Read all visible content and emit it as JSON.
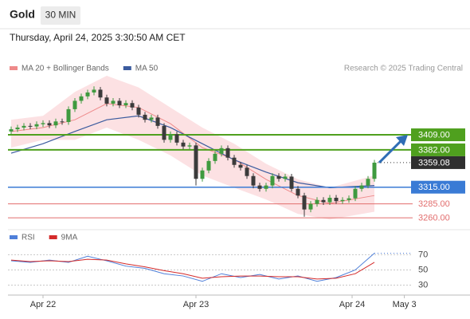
{
  "chart_data": [
    {
      "type": "candlestick",
      "title": "Gold",
      "timeframe": "30 MIN",
      "subtitle": "Thursday, April 24, 2025 3:30:50 AM CET",
      "source": "Research © 2025 Trading Central",
      "up_color": "#3f9a3f",
      "down_color": "#3b3b3b",
      "candles": {
        "open": [
          3415,
          3419,
          3422,
          3425,
          3424,
          3428,
          3430,
          3426,
          3433,
          3432,
          3455,
          3470,
          3478,
          3485,
          3490,
          3476,
          3465,
          3470,
          3462,
          3466,
          3458,
          3445,
          3436,
          3440,
          3425,
          3400,
          3410,
          3395,
          3388,
          3390,
          3330,
          3345,
          3362,
          3375,
          3385,
          3368,
          3355,
          3350,
          3335,
          3318,
          3312,
          3318,
          3335,
          3330,
          3334,
          3312,
          3300,
          3275,
          3285,
          3292,
          3288,
          3296,
          3290,
          3292,
          3295,
          3312,
          3318,
          3330
        ],
        "high": [
          3424,
          3427,
          3430,
          3430,
          3433,
          3435,
          3435,
          3438,
          3438,
          3460,
          3475,
          3483,
          3490,
          3496,
          3495,
          3481,
          3475,
          3475,
          3471,
          3471,
          3463,
          3450,
          3445,
          3445,
          3430,
          3415,
          3415,
          3400,
          3395,
          3395,
          3350,
          3367,
          3380,
          3390,
          3390,
          3373,
          3360,
          3355,
          3340,
          3323,
          3323,
          3340,
          3340,
          3339,
          3339,
          3317,
          3305,
          3290,
          3297,
          3297,
          3301,
          3301,
          3297,
          3300,
          3317,
          3323,
          3335,
          3364
        ],
        "low": [
          3410,
          3414,
          3417,
          3419,
          3419,
          3423,
          3421,
          3421,
          3427,
          3427,
          3450,
          3465,
          3473,
          3480,
          3471,
          3460,
          3460,
          3457,
          3457,
          3453,
          3440,
          3431,
          3431,
          3420,
          3395,
          3395,
          3390,
          3383,
          3383,
          3318,
          3325,
          3340,
          3357,
          3370,
          3363,
          3350,
          3345,
          3330,
          3313,
          3307,
          3307,
          3313,
          3325,
          3325,
          3307,
          3295,
          3262,
          3270,
          3280,
          3283,
          3283,
          3285,
          3285,
          3287,
          3290,
          3307,
          3313,
          3325
        ],
        "close": [
          3419,
          3422,
          3425,
          3424,
          3428,
          3430,
          3426,
          3433,
          3432,
          3455,
          3470,
          3478,
          3485,
          3490,
          3476,
          3465,
          3470,
          3462,
          3466,
          3458,
          3445,
          3436,
          3440,
          3425,
          3400,
          3410,
          3395,
          3388,
          3390,
          3330,
          3345,
          3362,
          3375,
          3385,
          3368,
          3355,
          3350,
          3335,
          3318,
          3312,
          3318,
          3335,
          3330,
          3334,
          3312,
          3300,
          3275,
          3285,
          3292,
          3288,
          3296,
          3290,
          3292,
          3295,
          3312,
          3318,
          3330,
          3359
        ]
      },
      "series": [
        {
          "name": "MA 20 + Bollinger Bands",
          "color": "#ee8a8a",
          "band_color": "#fbd9dc",
          "x": [
            0,
            5,
            10,
            15,
            20,
            25,
            30,
            35,
            40,
            45,
            50,
            57
          ],
          "values": [
            3415,
            3422,
            3436,
            3465,
            3458,
            3429,
            3386,
            3365,
            3329,
            3300,
            3286,
            3300
          ],
          "upper": [
            3436,
            3443,
            3486,
            3515,
            3494,
            3458,
            3422,
            3393,
            3357,
            3329,
            3314,
            3336
          ],
          "lower": [
            3386,
            3400,
            3400,
            3422,
            3400,
            3372,
            3336,
            3314,
            3293,
            3267,
            3257,
            3271
          ]
        },
        {
          "name": "MA 50",
          "color": "#3b5b9e",
          "x": [
            0,
            5,
            10,
            15,
            20,
            25,
            30,
            35,
            40,
            45,
            50,
            57
          ],
          "values": [
            3376,
            3393,
            3415,
            3436,
            3443,
            3422,
            3393,
            3364,
            3342,
            3323,
            3314,
            3318
          ]
        }
      ],
      "levels": [
        {
          "value": 3409,
          "label": "3409.00",
          "color": "#4fa01e",
          "style": "box"
        },
        {
          "value": 3382,
          "label": "3382.00",
          "color": "#4fa01e",
          "style": "box"
        },
        {
          "value": 3315,
          "label": "3315.00",
          "color": "#3a7bd5",
          "style": "box"
        },
        {
          "value": 3285,
          "label": "3285.00",
          "color": "#e26d6d",
          "style": "text"
        },
        {
          "value": 3260,
          "label": "3260.00",
          "color": "#e26d6d",
          "style": "text"
        }
      ],
      "last_price": 3359.08,
      "last_price_color": "#2f2f2f",
      "arrow_color": "#2f6db5",
      "xlim": [
        -0.5,
        63
      ],
      "ylim": [
        3243,
        3515
      ],
      "xticks": [
        {
          "value": 5,
          "label": "Apr 22"
        },
        {
          "value": 29,
          "label": "Apr 23"
        },
        {
          "value": 53.5,
          "label": "Apr 24"
        },
        {
          "value": 61.7,
          "label": "May 3"
        }
      ]
    },
    {
      "type": "line",
      "xlim": [
        -0.5,
        63
      ],
      "ylim": [
        20,
        82
      ],
      "yticks": [
        30,
        50,
        70
      ],
      "grid": true,
      "series": [
        {
          "name": "RSI",
          "color": "#4f7fd9",
          "x": [
            0,
            3,
            6,
            9,
            12,
            15,
            18,
            21,
            24,
            27,
            30,
            33,
            36,
            39,
            42,
            45,
            48,
            51,
            54,
            57
          ],
          "values": [
            62,
            60,
            63,
            60,
            68,
            62,
            55,
            52,
            45,
            42,
            35,
            45,
            40,
            44,
            38,
            42,
            35,
            40,
            50,
            72
          ]
        },
        {
          "name": "9MA",
          "color": "#d42a2a",
          "x": [
            0,
            3,
            6,
            9,
            12,
            15,
            18,
            21,
            24,
            27,
            30,
            33,
            36,
            39,
            42,
            45,
            48,
            51,
            54,
            57
          ],
          "values": [
            63,
            61,
            62,
            61,
            64,
            63,
            58,
            54,
            49,
            45,
            39,
            41,
            42,
            42,
            41,
            41,
            38,
            39,
            45,
            60
          ]
        }
      ]
    }
  ]
}
